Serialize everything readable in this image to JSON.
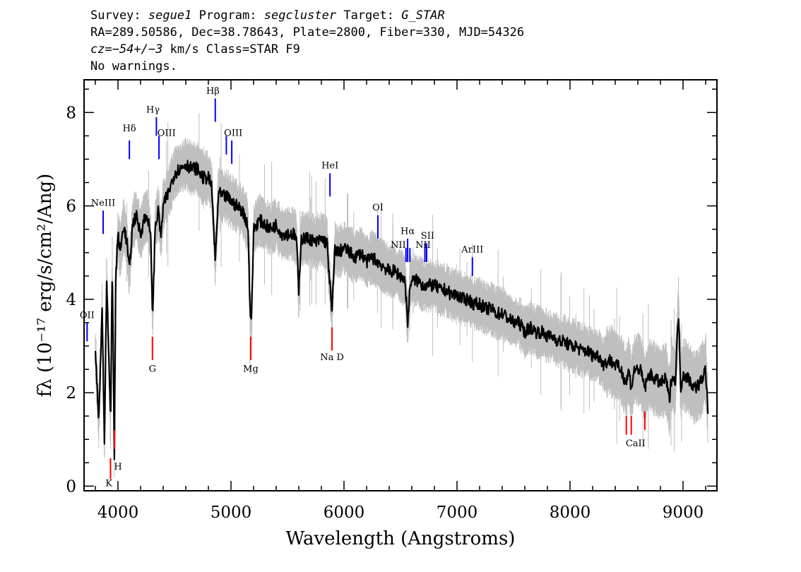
{
  "header": {
    "survey_label": "Survey:",
    "survey_value": "segue1",
    "program_label": "Program:",
    "program_value": "segcluster",
    "target_label": "Target:",
    "target_value": "G_STAR",
    "line2": "RA=289.50586, Dec=38.78643, Plate=2800, Fiber=330, MJD=54326",
    "cz_label": "cz=",
    "cz_value": "−54+/−3",
    "cz_units": "km/s Class=STAR F9",
    "line4": "No warnings."
  },
  "chart_data": {
    "type": "line",
    "xlabel": "Wavelength (Angstroms)",
    "ylabel": "fλ (10⁻¹⁷ erg/s/cm²/Ang)",
    "xlim": [
      3700,
      9300
    ],
    "ylim": [
      -0.1,
      8.7
    ],
    "x_ticks": [
      4000,
      5000,
      6000,
      7000,
      8000,
      9000
    ],
    "y_ticks": [
      0,
      2,
      4,
      6,
      8
    ],
    "series": [
      {
        "role": "flux",
        "color": "#000000",
        "points": [
          [
            3800,
            2.9
          ],
          [
            3830,
            1.4
          ],
          [
            3860,
            3.8
          ],
          [
            3880,
            0.9
          ],
          [
            3900,
            4.5
          ],
          [
            3920,
            2.7
          ],
          [
            3935,
            1.3
          ],
          [
            3950,
            4.8
          ],
          [
            3968,
            0.6
          ],
          [
            3980,
            4.4
          ],
          [
            4000,
            5.4
          ],
          [
            4020,
            5.0
          ],
          [
            4050,
            5.6
          ],
          [
            4080,
            5.2
          ],
          [
            4101,
            4.6
          ],
          [
            4130,
            5.6
          ],
          [
            4160,
            5.8
          ],
          [
            4200,
            5.4
          ],
          [
            4230,
            5.7
          ],
          [
            4260,
            5.8
          ],
          [
            4290,
            5.3
          ],
          [
            4307,
            3.6
          ],
          [
            4330,
            5.6
          ],
          [
            4360,
            5.9
          ],
          [
            4380,
            5.3
          ],
          [
            4400,
            6.0
          ],
          [
            4450,
            6.3
          ],
          [
            4500,
            6.7
          ],
          [
            4550,
            6.8
          ],
          [
            4600,
            6.9
          ],
          [
            4650,
            6.8
          ],
          [
            4700,
            6.8
          ],
          [
            4750,
            6.6
          ],
          [
            4800,
            6.6
          ],
          [
            4830,
            6.4
          ],
          [
            4861,
            4.8
          ],
          [
            4890,
            6.3
          ],
          [
            4920,
            6.2
          ],
          [
            4960,
            6.2
          ],
          [
            5000,
            6.1
          ],
          [
            5050,
            6.0
          ],
          [
            5100,
            5.9
          ],
          [
            5150,
            5.6
          ],
          [
            5170,
            3.7
          ],
          [
            5183,
            3.6
          ],
          [
            5200,
            5.5
          ],
          [
            5250,
            5.7
          ],
          [
            5300,
            5.6
          ],
          [
            5350,
            5.5
          ],
          [
            5400,
            5.6
          ],
          [
            5450,
            5.4
          ],
          [
            5500,
            5.4
          ],
          [
            5550,
            5.4
          ],
          [
            5580,
            5.3
          ],
          [
            5600,
            4.1
          ],
          [
            5620,
            5.3
          ],
          [
            5700,
            5.3
          ],
          [
            5750,
            5.2
          ],
          [
            5800,
            5.3
          ],
          [
            5850,
            5.2
          ],
          [
            5893,
            3.7
          ],
          [
            5920,
            5.1
          ],
          [
            5950,
            5.0
          ],
          [
            6000,
            5.1
          ],
          [
            6050,
            5.0
          ],
          [
            6100,
            4.9
          ],
          [
            6150,
            5.0
          ],
          [
            6200,
            4.8
          ],
          [
            6250,
            4.9
          ],
          [
            6300,
            4.8
          ],
          [
            6350,
            4.7
          ],
          [
            6400,
            4.6
          ],
          [
            6450,
            4.6
          ],
          [
            6500,
            4.5
          ],
          [
            6540,
            4.4
          ],
          [
            6563,
            3.5
          ],
          [
            6590,
            4.4
          ],
          [
            6650,
            4.4
          ],
          [
            6700,
            4.3
          ],
          [
            6750,
            4.3
          ],
          [
            6800,
            4.3
          ],
          [
            6850,
            4.2
          ],
          [
            6900,
            4.2
          ],
          [
            6950,
            4.1
          ],
          [
            7000,
            4.1
          ],
          [
            7050,
            4.0
          ],
          [
            7100,
            4.0
          ],
          [
            7150,
            3.9
          ],
          [
            7200,
            3.9
          ],
          [
            7250,
            3.8
          ],
          [
            7300,
            3.8
          ],
          [
            7350,
            3.7
          ],
          [
            7400,
            3.7
          ],
          [
            7450,
            3.6
          ],
          [
            7500,
            3.5
          ],
          [
            7550,
            3.5
          ],
          [
            7600,
            3.3
          ],
          [
            7650,
            3.4
          ],
          [
            7700,
            3.3
          ],
          [
            7750,
            3.3
          ],
          [
            7800,
            3.2
          ],
          [
            7850,
            3.2
          ],
          [
            7900,
            3.1
          ],
          [
            7950,
            3.1
          ],
          [
            8000,
            3.0
          ],
          [
            8050,
            3.0
          ],
          [
            8100,
            2.9
          ],
          [
            8150,
            2.9
          ],
          [
            8200,
            2.8
          ],
          [
            8250,
            2.8
          ],
          [
            8300,
            2.6
          ],
          [
            8350,
            2.7
          ],
          [
            8400,
            2.6
          ],
          [
            8450,
            2.5
          ],
          [
            8498,
            2.2
          ],
          [
            8520,
            2.5
          ],
          [
            8542,
            2.1
          ],
          [
            8570,
            2.5
          ],
          [
            8620,
            2.5
          ],
          [
            8662,
            2.1
          ],
          [
            8700,
            2.4
          ],
          [
            8750,
            2.3
          ],
          [
            8800,
            2.2
          ],
          [
            8850,
            2.3
          ],
          [
            8880,
            1.8
          ],
          [
            8900,
            2.4
          ],
          [
            8930,
            2.2
          ],
          [
            8960,
            3.7
          ],
          [
            8980,
            2.1
          ],
          [
            9000,
            2.4
          ],
          [
            9050,
            2.3
          ],
          [
            9100,
            2.1
          ],
          [
            9150,
            2.2
          ],
          [
            9200,
            2.5
          ],
          [
            9220,
            1.6
          ]
        ]
      }
    ],
    "emission_lines": [
      {
        "label": "OII",
        "x": 3727,
        "y_top": 3.5,
        "y_bottom": 3.1
      },
      {
        "label": "NeIII",
        "x": 3869,
        "y_top": 5.9,
        "y_bottom": 5.4
      },
      {
        "label": "Hδ",
        "x": 4101,
        "y_top": 7.4,
        "y_bottom": 7.0
      },
      {
        "label": "Hγ",
        "x": 4340,
        "y_top": 7.9,
        "y_bottom": 7.5
      },
      {
        "label": "OIII",
        "x": 4363,
        "y_top": 7.5,
        "y_bottom": 7.0
      },
      {
        "label": "Hβ",
        "x": 4861,
        "y_top": 8.3,
        "y_bottom": 7.8
      },
      {
        "label": "OIII",
        "x": 4959,
        "y_top": 7.5,
        "y_bottom": 7.1
      },
      {
        "label": "OIII",
        "x": 5007,
        "y_top": 7.4,
        "y_bottom": 6.9
      },
      {
        "label": "HeI",
        "x": 5876,
        "y_top": 6.7,
        "y_bottom": 6.2
      },
      {
        "label": "OI",
        "x": 6300,
        "y_top": 5.8,
        "y_bottom": 5.3
      },
      {
        "label": "NII",
        "x": 6548,
        "y_top": 5.1,
        "y_bottom": 4.8
      },
      {
        "label": "Hα",
        "x": 6563,
        "y_top": 5.3,
        "y_bottom": 4.8
      },
      {
        "label": "NII",
        "x": 6583,
        "y_top": 5.1,
        "y_bottom": 4.8
      },
      {
        "label": "SII",
        "x": 6716,
        "y_top": 5.2,
        "y_bottom": 4.8
      },
      {
        "label": "SII",
        "x": 6731,
        "y_top": 5.2,
        "y_bottom": 4.8
      },
      {
        "label": "ArIII",
        "x": 7136,
        "y_top": 4.9,
        "y_bottom": 4.5
      }
    ],
    "emission_text_labels": [
      {
        "text": "OII",
        "x": 3727,
        "y": 3.6
      },
      {
        "text": "NeIII",
        "x": 3869,
        "y": 6.0
      },
      {
        "text": "Hδ",
        "x": 4101,
        "y": 7.6
      },
      {
        "text": "Hγ",
        "x": 4310,
        "y": 8.0
      },
      {
        "text": "OIII",
        "x": 4430,
        "y": 7.5
      },
      {
        "text": "Hβ",
        "x": 4840,
        "y": 8.4
      },
      {
        "text": "OIII",
        "x": 5020,
        "y": 7.5
      },
      {
        "text": "HeI",
        "x": 5876,
        "y": 6.8
      },
      {
        "text": "OI",
        "x": 6300,
        "y": 5.9
      },
      {
        "text": "NII",
        "x": 6480,
        "y": 5.1
      },
      {
        "text": "Hα",
        "x": 6563,
        "y": 5.4
      },
      {
        "text": "SII",
        "x": 6740,
        "y": 5.3
      },
      {
        "text": "NII",
        "x": 6700,
        "y": 5.1
      },
      {
        "text": "ArIII",
        "x": 7136,
        "y": 5.0
      }
    ],
    "absorption_lines": [
      {
        "label": "K",
        "x": 3934,
        "y_top": 0.6,
        "y_bottom": 0.15
      },
      {
        "label": "H",
        "x": 3969,
        "y_top": 1.2,
        "y_bottom": 0.8
      },
      {
        "label": "G",
        "x": 4305,
        "y_top": 3.2,
        "y_bottom": 2.7
      },
      {
        "label": "Mg",
        "x": 5175,
        "y_top": 3.2,
        "y_bottom": 2.7
      },
      {
        "label": "Na D",
        "x": 5894,
        "y_top": 3.4,
        "y_bottom": 2.9
      },
      {
        "label": "CaII",
        "x": 8498,
        "y_top": 1.5,
        "y_bottom": 1.1
      },
      {
        "label": "CaII",
        "x": 8542,
        "y_top": 1.5,
        "y_bottom": 1.1
      },
      {
        "label": "CaII",
        "x": 8662,
        "y_top": 1.6,
        "y_bottom": 1.2
      }
    ],
    "absorption_text_labels": [
      {
        "text": "K",
        "x": 3920,
        "y": 0.0
      },
      {
        "text": "H",
        "x": 4000,
        "y": 0.35
      },
      {
        "text": "G",
        "x": 4305,
        "y": 2.45
      },
      {
        "text": "Mg",
        "x": 5175,
        "y": 2.45
      },
      {
        "text": "Na  D",
        "x": 5894,
        "y": 2.7
      },
      {
        "text": "CaII",
        "x": 8580,
        "y": 0.85
      }
    ],
    "colors": {
      "flux": "#000000",
      "noise": "#bfbfbf",
      "emission": "#0000ff",
      "absorption": "#ff0000",
      "axis": "#000000"
    }
  }
}
